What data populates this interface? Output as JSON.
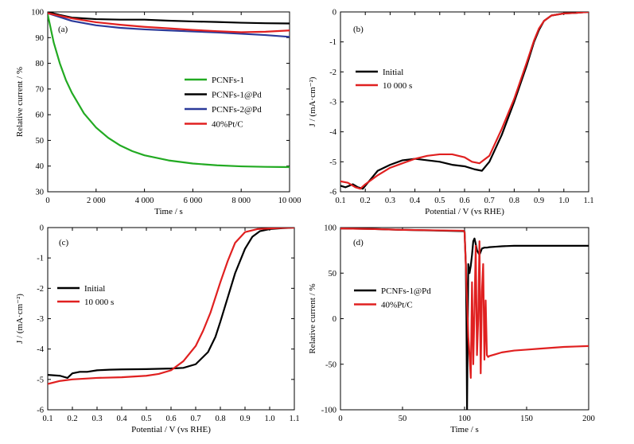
{
  "chart_data": [
    {
      "type": "line",
      "panel_label": "(a)",
      "xlabel": "Time / s",
      "ylabel": "Relative current / %",
      "xlim": [
        0,
        10000
      ],
      "ylim": [
        30,
        100
      ],
      "xticks": [
        0,
        2000,
        4000,
        6000,
        8000,
        10000
      ],
      "xtick_labels": [
        "0",
        "2 000",
        "4 000",
        "6 000",
        "8 000",
        "10 000"
      ],
      "yticks": [
        30,
        40,
        50,
        60,
        70,
        80,
        90,
        100
      ],
      "ytick_labels": [
        "30",
        "40",
        "50",
        "60",
        "70",
        "80",
        "90",
        "100"
      ],
      "legend_position": "center-right",
      "series": [
        {
          "name": "PCNFs-1",
          "color": "#22aa22",
          "x": [
            0,
            250,
            500,
            750,
            1000,
            1500,
            2000,
            2500,
            3000,
            3500,
            4000,
            5000,
            6000,
            7000,
            8000,
            9000,
            10000
          ],
          "y": [
            99,
            88,
            80,
            73.5,
            68.5,
            60.5,
            55,
            51,
            48,
            45.8,
            44.2,
            42.2,
            41,
            40.3,
            39.9,
            39.7,
            39.6
          ]
        },
        {
          "name": "PCNFs-1@Pd",
          "color": "#000000",
          "x": [
            0,
            500,
            1000,
            2000,
            3000,
            4000,
            5000,
            6000,
            7000,
            8000,
            9000,
            10000
          ],
          "y": [
            100,
            98.8,
            97.8,
            97.2,
            97,
            97,
            96.6,
            96.3,
            96.1,
            95.8,
            95.6,
            95.5
          ]
        },
        {
          "name": "PCNFs-2@Pd",
          "color": "#2b3a9a",
          "x": [
            0,
            500,
            1000,
            2000,
            3000,
            4000,
            5000,
            6000,
            7000,
            8000,
            9000,
            10000
          ],
          "y": [
            99.5,
            98,
            96.5,
            94.8,
            93.8,
            93.2,
            92.8,
            92.4,
            92,
            91.5,
            91,
            90.3
          ]
        },
        {
          "name": "40%Pt/C",
          "color": "#e02020",
          "x": [
            0,
            500,
            1000,
            2000,
            3000,
            4000,
            5000,
            6000,
            7000,
            8000,
            9000,
            10000
          ],
          "y": [
            99.5,
            98.5,
            97.5,
            96,
            95,
            94.2,
            93.6,
            93,
            92.5,
            92.1,
            92.3,
            92.8
          ]
        }
      ]
    },
    {
      "type": "line",
      "panel_label": "(b)",
      "xlabel": "Potential / V (vs RHE)",
      "ylabel": "J / (mA·cm⁻²)",
      "xlim": [
        0.1,
        1.1
      ],
      "ylim": [
        -6,
        0
      ],
      "xticks": [
        0.1,
        0.2,
        0.3,
        0.4,
        0.5,
        0.6,
        0.7,
        0.8,
        0.9,
        1.0,
        1.1
      ],
      "xtick_labels": [
        "0.1",
        "0.2",
        "0.3",
        "0.4",
        "0.5",
        "0.6",
        "0.7",
        "0.8",
        "0.9",
        "1.0",
        "1.1"
      ],
      "yticks": [
        -6,
        -5,
        -4,
        -3,
        -2,
        -1,
        0
      ],
      "ytick_labels": [
        "-6",
        "-5",
        "-4",
        "-3",
        "-2",
        "-1",
        "0"
      ],
      "legend_position": "middle-left",
      "series": [
        {
          "name": "Initial",
          "color": "#000000",
          "x": [
            0.1,
            0.12,
            0.15,
            0.17,
            0.19,
            0.22,
            0.25,
            0.3,
            0.35,
            0.4,
            0.45,
            0.5,
            0.55,
            0.6,
            0.64,
            0.67,
            0.7,
            0.75,
            0.8,
            0.85,
            0.88,
            0.9,
            0.92,
            0.95,
            1.0,
            1.05,
            1.08,
            1.1
          ],
          "y": [
            -5.8,
            -5.85,
            -5.75,
            -5.85,
            -5.9,
            -5.6,
            -5.3,
            -5.1,
            -4.95,
            -4.9,
            -4.95,
            -5.0,
            -5.1,
            -5.15,
            -5.25,
            -5.3,
            -5.0,
            -4.1,
            -3.0,
            -1.8,
            -1.0,
            -0.6,
            -0.3,
            -0.12,
            -0.05,
            -0.03,
            -0.01,
            0
          ]
        },
        {
          "name": "10 000 s",
          "color": "#e02020",
          "x": [
            0.1,
            0.13,
            0.16,
            0.18,
            0.2,
            0.25,
            0.3,
            0.35,
            0.4,
            0.45,
            0.5,
            0.55,
            0.6,
            0.63,
            0.66,
            0.7,
            0.75,
            0.8,
            0.85,
            0.88,
            0.9,
            0.92,
            0.95,
            1.0,
            1.05,
            1.08,
            1.1
          ],
          "y": [
            -5.65,
            -5.7,
            -5.85,
            -5.9,
            -5.75,
            -5.45,
            -5.2,
            -5.05,
            -4.9,
            -4.8,
            -4.75,
            -4.75,
            -4.85,
            -5.0,
            -5.05,
            -4.8,
            -3.9,
            -2.9,
            -1.7,
            -0.95,
            -0.55,
            -0.3,
            -0.12,
            -0.05,
            -0.03,
            -0.01,
            0
          ]
        }
      ]
    },
    {
      "type": "line",
      "panel_label": "(c)",
      "xlabel": "Potential / V (vs RHE)",
      "ylabel": "J / (mA·cm⁻²)",
      "xlim": [
        0.1,
        1.1
      ],
      "ylim": [
        -6,
        0
      ],
      "xticks": [
        0.1,
        0.2,
        0.3,
        0.4,
        0.5,
        0.6,
        0.7,
        0.8,
        0.9,
        1.0,
        1.1
      ],
      "xtick_labels": [
        "0.1",
        "0.2",
        "0.3",
        "0.4",
        "0.5",
        "0.6",
        "0.7",
        "0.8",
        "0.9",
        "1.0",
        "1.1"
      ],
      "yticks": [
        -6,
        -5,
        -4,
        -3,
        -2,
        -1,
        0
      ],
      "ytick_labels": [
        "-6",
        "-5",
        "-4",
        "-3",
        "-2",
        "-1",
        "0"
      ],
      "legend_position": "middle-left",
      "series": [
        {
          "name": "Initial",
          "color": "#000000",
          "x": [
            0.1,
            0.15,
            0.18,
            0.2,
            0.23,
            0.26,
            0.3,
            0.35,
            0.4,
            0.5,
            0.6,
            0.65,
            0.7,
            0.75,
            0.78,
            0.8,
            0.83,
            0.86,
            0.9,
            0.93,
            0.96,
            1.0,
            1.05,
            1.1
          ],
          "y": [
            -4.85,
            -4.88,
            -4.95,
            -4.8,
            -4.75,
            -4.75,
            -4.7,
            -4.68,
            -4.67,
            -4.66,
            -4.64,
            -4.62,
            -4.5,
            -4.1,
            -3.6,
            -3.1,
            -2.3,
            -1.5,
            -0.7,
            -0.3,
            -0.12,
            -0.05,
            -0.02,
            0
          ]
        },
        {
          "name": "10 000 s",
          "color": "#e02020",
          "x": [
            0.1,
            0.15,
            0.2,
            0.3,
            0.4,
            0.5,
            0.55,
            0.6,
            0.65,
            0.7,
            0.73,
            0.76,
            0.8,
            0.83,
            0.86,
            0.9,
            0.95,
            1.0,
            1.05,
            1.1
          ],
          "y": [
            -5.15,
            -5.05,
            -5.0,
            -4.95,
            -4.93,
            -4.88,
            -4.82,
            -4.7,
            -4.4,
            -3.9,
            -3.4,
            -2.8,
            -1.8,
            -1.1,
            -0.5,
            -0.15,
            -0.05,
            -0.03,
            -0.01,
            0
          ]
        }
      ]
    },
    {
      "type": "line",
      "panel_label": "(d)",
      "xlabel": "Time / s",
      "ylabel": "Relative current / %",
      "xlim": [
        0,
        200
      ],
      "ylim": [
        -100,
        100
      ],
      "xticks": [
        0,
        50,
        100,
        150,
        200
      ],
      "xtick_labels": [
        "0",
        "50",
        "100",
        "150",
        "200"
      ],
      "yticks": [
        -100,
        -50,
        0,
        50,
        100
      ],
      "ytick_labels": [
        "-100",
        "-50",
        "0",
        "50",
        "100"
      ],
      "legend_position": "middle-left",
      "series": [
        {
          "name": "PCNFs-1@Pd",
          "color": "#000000",
          "x": [
            0,
            25,
            50,
            75,
            99,
            100,
            101,
            101.5,
            102,
            102.5,
            103,
            104,
            105,
            106,
            107,
            108,
            109,
            110,
            112,
            114,
            116,
            118,
            120,
            125,
            130,
            140,
            150,
            160,
            170,
            180,
            190,
            200
          ],
          "y": [
            99,
            98.5,
            97.5,
            96.8,
            96,
            95.5,
            60,
            0,
            -100,
            -20,
            60,
            50,
            58,
            70,
            85,
            88,
            82,
            75,
            70,
            77,
            78,
            78,
            78.5,
            79,
            79.5,
            80,
            80,
            80,
            80,
            80,
            80,
            80
          ]
        },
        {
          "name": "40%Pt/C",
          "color": "#e02020",
          "x": [
            0,
            25,
            50,
            75,
            99,
            100,
            101,
            102,
            103,
            104,
            105,
            106,
            107,
            108,
            109,
            110,
            111,
            112,
            113,
            114,
            115,
            116,
            117,
            118,
            119,
            120,
            125,
            130,
            140,
            150,
            160,
            170,
            180,
            190,
            200
          ],
          "y": [
            99,
            98.5,
            97.5,
            97,
            96.5,
            95,
            60,
            20,
            -20,
            -40,
            -65,
            40,
            -50,
            10,
            80,
            -40,
            0,
            85,
            -60,
            30,
            60,
            -45,
            20,
            -40,
            -42,
            -41,
            -39,
            -37,
            -35,
            -34,
            -33,
            -32,
            -31,
            -30.5,
            -30
          ]
        }
      ]
    }
  ]
}
